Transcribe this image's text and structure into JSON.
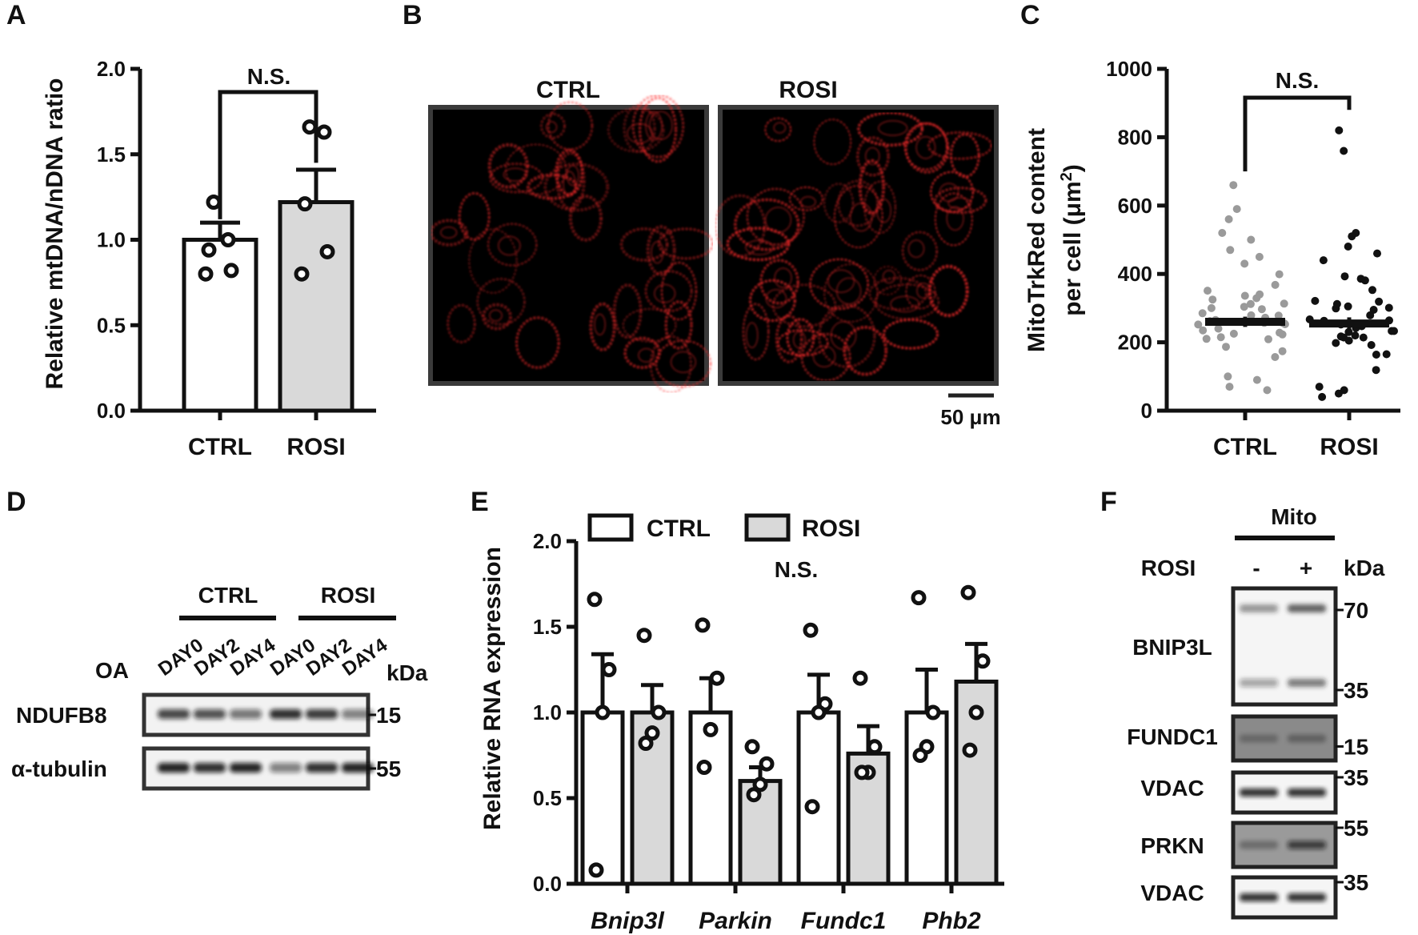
{
  "chart_data": [
    {
      "panel": "A",
      "type": "bar",
      "categories": [
        "CTRL",
        "ROSI"
      ],
      "values": [
        1.0,
        1.22
      ],
      "errors": [
        0.1,
        0.19
      ],
      "points": [
        [
          1.22,
          1.0,
          0.94,
          0.82,
          0.8
        ],
        [
          1.66,
          1.63,
          1.21,
          0.93,
          0.8
        ]
      ],
      "bar_colors": [
        "#ffffff",
        "#d9d9d9"
      ],
      "ylabel": "Relative mtDNA/nDNA ratio",
      "ylim": [
        0,
        2.0
      ],
      "yticks": [
        "0.0",
        "0.5",
        "1.0",
        "1.5",
        "2.0"
      ],
      "significance": "N.S."
    },
    {
      "panel": "C",
      "type": "scatter",
      "categories": [
        "CTRL",
        "ROSI"
      ],
      "means": [
        260,
        255
      ],
      "sem": [
        15,
        18
      ],
      "point_colors": [
        "#9a9a9a",
        "#111111"
      ],
      "ylabel": "MitoTrkRed content",
      "ylabel2": "per cell (μm",
      "ylabel_sup": "2",
      "ylabel_end": ")",
      "ylim": [
        0,
        1000
      ],
      "yticks": [
        "0",
        "200",
        "400",
        "600",
        "800",
        "1000"
      ],
      "significance": "N.S."
    },
    {
      "panel": "E",
      "type": "bar",
      "categories": [
        "Bnip3l",
        "Parkin",
        "Fundc1",
        "Phb2"
      ],
      "series": [
        {
          "name": "CTRL",
          "color": "#ffffff",
          "values": [
            1.0,
            1.0,
            1.0,
            1.0
          ],
          "errors": [
            0.34,
            0.2,
            0.22,
            0.25
          ],
          "points": [
            [
              1.66,
              1.25,
              1.0,
              0.08
            ],
            [
              1.51,
              1.2,
              0.9,
              0.68
            ],
            [
              1.48,
              1.05,
              1.0,
              0.45
            ],
            [
              1.67,
              1.0,
              0.8,
              0.75
            ]
          ]
        },
        {
          "name": "ROSI",
          "color": "#d9d9d9",
          "values": [
            1.0,
            0.6,
            0.76,
            1.18
          ],
          "errors": [
            0.16,
            0.08,
            0.16,
            0.22
          ],
          "points": [
            [
              1.45,
              1.0,
              0.88,
              0.82
            ],
            [
              0.8,
              0.7,
              0.58,
              0.52
            ],
            [
              1.2,
              0.8,
              0.65,
              0.65
            ],
            [
              1.7,
              1.3,
              1.0,
              0.78
            ]
          ]
        }
      ],
      "ylabel": "Relative RNA expression",
      "ylim": [
        0,
        2.0
      ],
      "yticks": [
        "0.0",
        "0.5",
        "1.0",
        "1.5",
        "2.0"
      ],
      "significance": "N.S."
    }
  ],
  "panels": {
    "a": "A",
    "b": "B",
    "c": "C",
    "d": "D",
    "e": "E",
    "f": "F"
  },
  "microscopy": {
    "ctrl_label": "CTRL",
    "rosi_label": "ROSI",
    "scale_bar": "50 μm",
    "signal_color": "#ff2a2a"
  },
  "blot_d": {
    "groups": [
      "CTRL",
      "ROSI"
    ],
    "row_label": "OA",
    "lanes": [
      "DAY0",
      "DAY2",
      "DAY4",
      "DAY0",
      "DAY2",
      "DAY4"
    ],
    "kda": "kDa",
    "bands": [
      {
        "label": "NDUFB8",
        "mw": "15"
      },
      {
        "label": "α-tubulin",
        "mw": "55"
      }
    ]
  },
  "blot_f": {
    "header": "Mito",
    "row_label": "ROSI",
    "lanes": [
      "-",
      "+"
    ],
    "kda": "kDa",
    "bnip3l": {
      "label": "BNIP3L",
      "mw_top": "70",
      "mw_bottom": "35"
    },
    "others": [
      {
        "label": "FUNDC1",
        "mw": "15"
      },
      {
        "label": "VDAC",
        "mw": "35"
      },
      {
        "label": "PRKN",
        "mw": "55"
      },
      {
        "label": "VDAC",
        "mw": "35"
      }
    ]
  }
}
